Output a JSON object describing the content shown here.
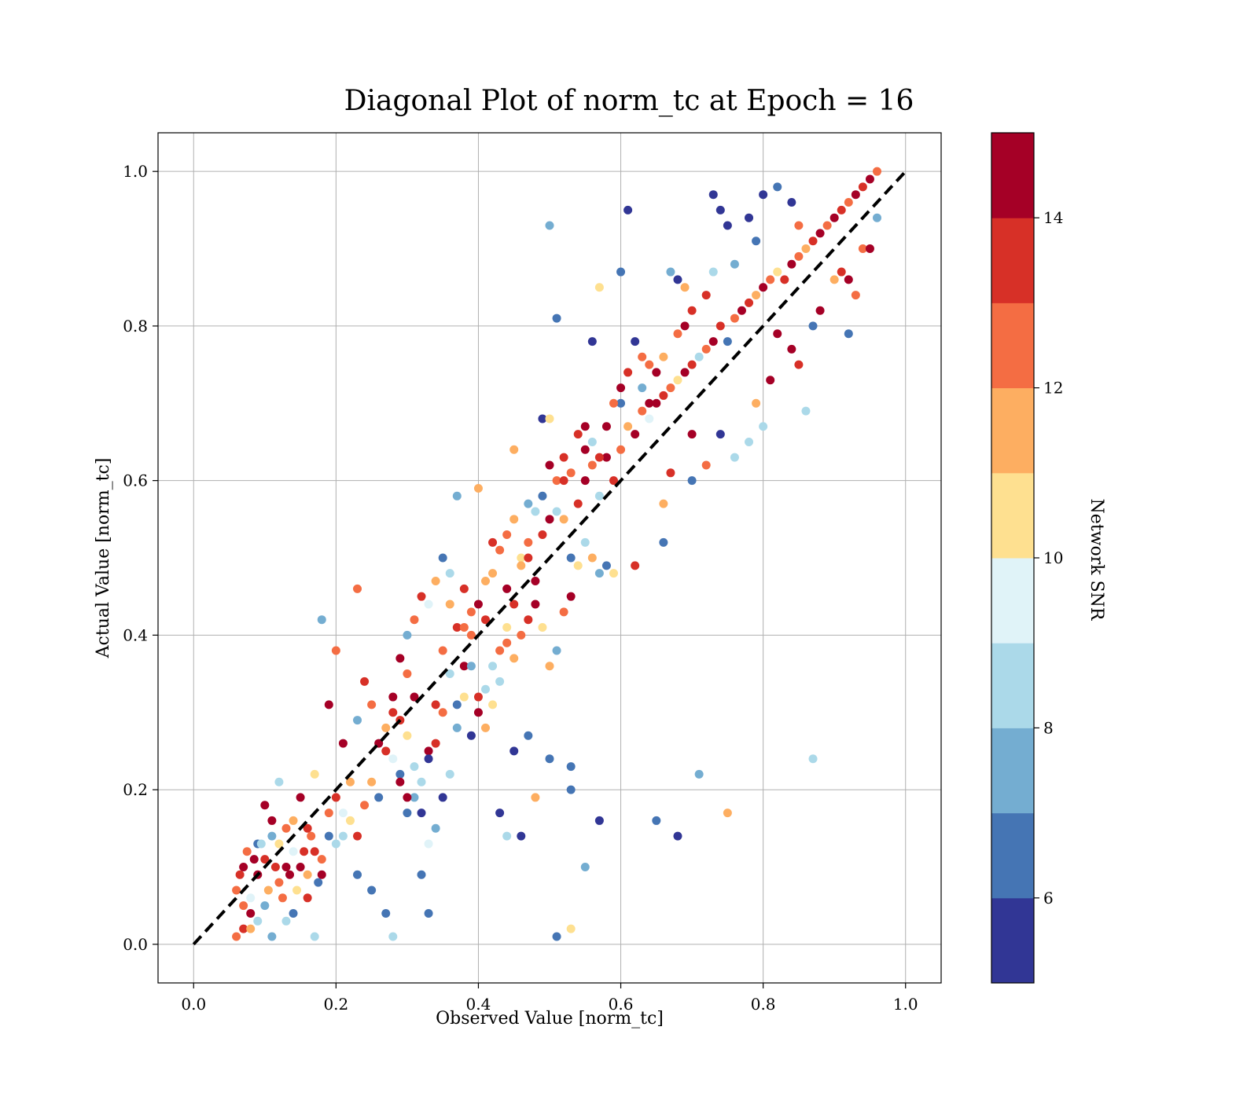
{
  "chart_data": {
    "type": "scatter",
    "title": "Diagonal Plot of norm_tc at Epoch = 16",
    "xlabel": "Observed Value [norm_tc]",
    "ylabel": "Actual Value [norm_tc]",
    "xlim": [
      -0.05,
      1.05
    ],
    "ylim": [
      -0.05,
      1.05
    ],
    "xticks": [
      "0.0",
      "0.2",
      "0.4",
      "0.6",
      "0.8",
      "1.0"
    ],
    "yticks": [
      "0.0",
      "0.2",
      "0.4",
      "0.6",
      "0.8",
      "1.0"
    ],
    "grid": true,
    "reference_line": {
      "style": "dashed",
      "color": "#000000",
      "from": [
        0,
        0
      ],
      "to": [
        1,
        1
      ]
    },
    "colorbar": {
      "label": "Network SNR",
      "range": [
        5,
        15
      ],
      "ticks": [
        "6",
        "8",
        "10",
        "12",
        "14"
      ],
      "colors": [
        "#313695",
        "#4575b4",
        "#74add1",
        "#abd9e9",
        "#e0f3f8",
        "#fee090",
        "#fdae61",
        "#f46d43",
        "#d73027",
        "#a50026"
      ]
    },
    "points": [
      [
        0.06,
        0.01,
        12
      ],
      [
        0.07,
        0.02,
        13
      ],
      [
        0.08,
        0.04,
        14
      ],
      [
        0.06,
        0.07,
        12
      ],
      [
        0.09,
        0.09,
        14
      ],
      [
        0.1,
        0.11,
        13
      ],
      [
        0.12,
        0.08,
        12
      ],
      [
        0.11,
        0.14,
        7
      ],
      [
        0.13,
        0.1,
        14
      ],
      [
        0.08,
        0.06,
        9
      ],
      [
        0.07,
        0.1,
        14
      ],
      [
        0.1,
        0.18,
        14
      ],
      [
        0.12,
        0.21,
        8
      ],
      [
        0.14,
        0.16,
        11
      ],
      [
        0.09,
        0.13,
        6
      ],
      [
        0.15,
        0.19,
        14
      ],
      [
        0.16,
        0.15,
        13
      ],
      [
        0.17,
        0.22,
        10
      ],
      [
        0.18,
        0.09,
        14
      ],
      [
        0.16,
        0.06,
        13
      ],
      [
        0.13,
        0.03,
        8
      ],
      [
        0.11,
        0.01,
        7
      ],
      [
        0.17,
        0.01,
        8
      ],
      [
        0.14,
        0.04,
        6
      ],
      [
        0.19,
        0.17,
        12
      ],
      [
        0.2,
        0.19,
        13
      ],
      [
        0.21,
        0.26,
        14
      ],
      [
        0.22,
        0.21,
        11
      ],
      [
        0.23,
        0.29,
        7
      ],
      [
        0.24,
        0.34,
        13
      ],
      [
        0.25,
        0.31,
        12
      ],
      [
        0.26,
        0.26,
        14
      ],
      [
        0.27,
        0.28,
        11
      ],
      [
        0.28,
        0.3,
        13
      ],
      [
        0.29,
        0.37,
        14
      ],
      [
        0.3,
        0.35,
        12
      ],
      [
        0.31,
        0.32,
        14
      ],
      [
        0.29,
        0.22,
        6
      ],
      [
        0.3,
        0.17,
        6
      ],
      [
        0.32,
        0.09,
        6
      ],
      [
        0.33,
        0.04,
        6
      ],
      [
        0.27,
        0.04,
        6
      ],
      [
        0.28,
        0.01,
        8
      ],
      [
        0.25,
        0.07,
        6
      ],
      [
        0.23,
        0.09,
        6
      ],
      [
        0.21,
        0.14,
        8
      ],
      [
        0.33,
        0.25,
        14
      ],
      [
        0.34,
        0.31,
        13
      ],
      [
        0.35,
        0.38,
        12
      ],
      [
        0.36,
        0.44,
        11
      ],
      [
        0.37,
        0.41,
        13
      ],
      [
        0.38,
        0.36,
        14
      ],
      [
        0.39,
        0.4,
        12
      ],
      [
        0.4,
        0.44,
        14
      ],
      [
        0.41,
        0.42,
        13
      ],
      [
        0.42,
        0.48,
        11
      ],
      [
        0.43,
        0.51,
        12
      ],
      [
        0.44,
        0.46,
        14
      ],
      [
        0.45,
        0.44,
        13
      ],
      [
        0.46,
        0.5,
        10
      ],
      [
        0.47,
        0.52,
        12
      ],
      [
        0.48,
        0.47,
        14
      ],
      [
        0.49,
        0.53,
        13
      ],
      [
        0.5,
        0.55,
        14
      ],
      [
        0.51,
        0.6,
        12
      ],
      [
        0.52,
        0.55,
        11
      ],
      [
        0.53,
        0.5,
        6
      ],
      [
        0.54,
        0.57,
        13
      ],
      [
        0.55,
        0.6,
        14
      ],
      [
        0.56,
        0.62,
        12
      ],
      [
        0.57,
        0.58,
        8
      ],
      [
        0.58,
        0.63,
        14
      ],
      [
        0.59,
        0.6,
        13
      ],
      [
        0.6,
        0.64,
        12
      ],
      [
        0.61,
        0.67,
        11
      ],
      [
        0.62,
        0.66,
        14
      ],
      [
        0.63,
        0.69,
        12
      ],
      [
        0.64,
        0.68,
        9
      ],
      [
        0.65,
        0.7,
        14
      ],
      [
        0.66,
        0.71,
        13
      ],
      [
        0.67,
        0.72,
        12
      ],
      [
        0.68,
        0.73,
        10
      ],
      [
        0.69,
        0.74,
        14
      ],
      [
        0.7,
        0.75,
        13
      ],
      [
        0.71,
        0.76,
        8
      ],
      [
        0.72,
        0.77,
        12
      ],
      [
        0.73,
        0.78,
        14
      ],
      [
        0.74,
        0.8,
        13
      ],
      [
        0.75,
        0.78,
        6
      ],
      [
        0.76,
        0.81,
        12
      ],
      [
        0.77,
        0.82,
        14
      ],
      [
        0.78,
        0.83,
        13
      ],
      [
        0.79,
        0.84,
        11
      ],
      [
        0.8,
        0.85,
        14
      ],
      [
        0.81,
        0.86,
        12
      ],
      [
        0.82,
        0.87,
        10
      ],
      [
        0.83,
        0.86,
        13
      ],
      [
        0.84,
        0.88,
        14
      ],
      [
        0.85,
        0.89,
        12
      ],
      [
        0.86,
        0.9,
        11
      ],
      [
        0.87,
        0.91,
        13
      ],
      [
        0.88,
        0.92,
        14
      ],
      [
        0.89,
        0.93,
        12
      ],
      [
        0.9,
        0.94,
        14
      ],
      [
        0.91,
        0.95,
        13
      ],
      [
        0.92,
        0.96,
        12
      ],
      [
        0.93,
        0.97,
        14
      ],
      [
        0.94,
        0.98,
        13
      ],
      [
        0.95,
        0.99,
        14
      ],
      [
        0.96,
        1.0,
        12
      ],
      [
        0.73,
        0.97,
        5
      ],
      [
        0.74,
        0.95,
        5
      ],
      [
        0.75,
        0.93,
        5
      ],
      [
        0.61,
        0.95,
        5
      ],
      [
        0.5,
        0.93,
        7
      ],
      [
        0.6,
        0.87,
        6
      ],
      [
        0.51,
        0.81,
        6
      ],
      [
        0.56,
        0.78,
        5
      ],
      [
        0.57,
        0.85,
        10
      ],
      [
        0.49,
        0.68,
        5
      ],
      [
        0.5,
        0.68,
        10
      ],
      [
        0.45,
        0.64,
        11
      ],
      [
        0.4,
        0.59,
        11
      ],
      [
        0.37,
        0.58,
        7
      ],
      [
        0.35,
        0.5,
        6
      ],
      [
        0.18,
        0.42,
        7
      ],
      [
        0.23,
        0.46,
        12
      ],
      [
        0.2,
        0.38,
        12
      ],
      [
        0.19,
        0.31,
        14
      ],
      [
        0.45,
        0.25,
        5
      ],
      [
        0.47,
        0.27,
        6
      ],
      [
        0.5,
        0.24,
        6
      ],
      [
        0.53,
        0.23,
        6
      ],
      [
        0.53,
        0.2,
        6
      ],
      [
        0.48,
        0.19,
        11
      ],
      [
        0.43,
        0.17,
        5
      ],
      [
        0.44,
        0.14,
        8
      ],
      [
        0.46,
        0.14,
        5
      ],
      [
        0.51,
        0.01,
        6
      ],
      [
        0.53,
        0.02,
        10
      ],
      [
        0.55,
        0.1,
        7
      ],
      [
        0.57,
        0.16,
        5
      ],
      [
        0.65,
        0.16,
        6
      ],
      [
        0.68,
        0.14,
        5
      ],
      [
        0.71,
        0.22,
        7
      ],
      [
        0.75,
        0.17,
        11
      ],
      [
        0.87,
        0.24,
        8
      ],
      [
        0.92,
        0.79,
        6
      ],
      [
        0.66,
        0.52,
        6
      ],
      [
        0.59,
        0.48,
        10
      ],
      [
        0.62,
        0.49,
        13
      ],
      [
        0.58,
        0.49,
        6
      ],
      [
        0.66,
        0.57,
        11
      ],
      [
        0.67,
        0.61,
        13
      ],
      [
        0.7,
        0.6,
        6
      ],
      [
        0.72,
        0.62,
        12
      ],
      [
        0.7,
        0.66,
        14
      ],
      [
        0.74,
        0.66,
        5
      ],
      [
        0.76,
        0.63,
        8
      ],
      [
        0.78,
        0.65,
        8
      ],
      [
        0.79,
        0.7,
        11
      ],
      [
        0.8,
        0.67,
        8
      ],
      [
        0.81,
        0.73,
        14
      ],
      [
        0.82,
        0.79,
        14
      ],
      [
        0.84,
        0.77,
        14
      ],
      [
        0.85,
        0.75,
        13
      ],
      [
        0.86,
        0.69,
        8
      ],
      [
        0.87,
        0.8,
        6
      ],
      [
        0.88,
        0.82,
        14
      ],
      [
        0.9,
        0.86,
        11
      ],
      [
        0.91,
        0.87,
        13
      ],
      [
        0.92,
        0.86,
        14
      ],
      [
        0.93,
        0.84,
        12
      ],
      [
        0.94,
        0.9,
        12
      ],
      [
        0.95,
        0.9,
        14
      ],
      [
        0.96,
        0.94,
        7
      ],
      [
        0.85,
        0.93,
        12
      ],
      [
        0.84,
        0.96,
        5
      ],
      [
        0.82,
        0.98,
        6
      ],
      [
        0.8,
        0.97,
        5
      ],
      [
        0.78,
        0.94,
        5
      ],
      [
        0.79,
        0.91,
        6
      ],
      [
        0.76,
        0.88,
        7
      ],
      [
        0.73,
        0.87,
        8
      ],
      [
        0.72,
        0.84,
        13
      ],
      [
        0.68,
        0.86,
        5
      ],
      [
        0.69,
        0.85,
        11
      ],
      [
        0.67,
        0.87,
        7
      ],
      [
        0.63,
        0.76,
        12
      ],
      [
        0.62,
        0.78,
        5
      ],
      [
        0.64,
        0.7,
        14
      ],
      [
        0.58,
        0.67,
        14
      ],
      [
        0.6,
        0.7,
        6
      ],
      [
        0.55,
        0.67,
        14
      ],
      [
        0.54,
        0.66,
        13
      ],
      [
        0.52,
        0.6,
        13
      ],
      [
        0.51,
        0.56,
        8
      ],
      [
        0.48,
        0.56,
        8
      ],
      [
        0.47,
        0.5,
        13
      ],
      [
        0.46,
        0.49,
        11
      ],
      [
        0.44,
        0.41,
        10
      ],
      [
        0.43,
        0.38,
        12
      ],
      [
        0.42,
        0.36,
        8
      ],
      [
        0.41,
        0.33,
        8
      ],
      [
        0.4,
        0.3,
        14
      ],
      [
        0.39,
        0.27,
        5
      ],
      [
        0.38,
        0.32,
        10
      ],
      [
        0.37,
        0.31,
        6
      ],
      [
        0.36,
        0.35,
        8
      ],
      [
        0.35,
        0.3,
        12
      ],
      [
        0.34,
        0.26,
        13
      ],
      [
        0.33,
        0.24,
        5
      ],
      [
        0.32,
        0.21,
        8
      ],
      [
        0.31,
        0.19,
        7
      ],
      [
        0.3,
        0.19,
        14
      ],
      [
        0.29,
        0.21,
        14
      ],
      [
        0.28,
        0.24,
        9
      ],
      [
        0.27,
        0.25,
        13
      ],
      [
        0.26,
        0.19,
        6
      ],
      [
        0.25,
        0.21,
        11
      ],
      [
        0.24,
        0.18,
        12
      ],
      [
        0.23,
        0.14,
        13
      ],
      [
        0.22,
        0.16,
        10
      ],
      [
        0.21,
        0.17,
        9
      ],
      [
        0.2,
        0.13,
        8
      ],
      [
        0.19,
        0.14,
        6
      ],
      [
        0.18,
        0.11,
        12
      ],
      [
        0.17,
        0.12,
        13
      ],
      [
        0.16,
        0.09,
        11
      ],
      [
        0.15,
        0.1,
        14
      ],
      [
        0.14,
        0.12,
        9
      ],
      [
        0.13,
        0.15,
        12
      ],
      [
        0.12,
        0.13,
        10
      ],
      [
        0.11,
        0.16,
        14
      ],
      [
        0.1,
        0.05,
        7
      ],
      [
        0.09,
        0.03,
        8
      ],
      [
        0.08,
        0.02,
        11
      ],
      [
        0.07,
        0.05,
        12
      ],
      [
        0.065,
        0.09,
        13
      ],
      [
        0.075,
        0.12,
        12
      ],
      [
        0.085,
        0.11,
        14
      ],
      [
        0.095,
        0.13,
        8
      ],
      [
        0.105,
        0.07,
        11
      ],
      [
        0.115,
        0.1,
        13
      ],
      [
        0.125,
        0.06,
        12
      ],
      [
        0.135,
        0.09,
        14
      ],
      [
        0.145,
        0.07,
        10
      ],
      [
        0.155,
        0.12,
        13
      ],
      [
        0.165,
        0.14,
        12
      ],
      [
        0.175,
        0.08,
        6
      ],
      [
        0.3,
        0.4,
        7
      ],
      [
        0.31,
        0.42,
        12
      ],
      [
        0.32,
        0.45,
        13
      ],
      [
        0.33,
        0.44,
        9
      ],
      [
        0.34,
        0.47,
        11
      ],
      [
        0.36,
        0.48,
        8
      ],
      [
        0.38,
        0.46,
        13
      ],
      [
        0.39,
        0.43,
        12
      ],
      [
        0.41,
        0.47,
        11
      ],
      [
        0.42,
        0.52,
        13
      ],
      [
        0.44,
        0.53,
        12
      ],
      [
        0.45,
        0.55,
        11
      ],
      [
        0.47,
        0.57,
        7
      ],
      [
        0.49,
        0.58,
        6
      ],
      [
        0.5,
        0.62,
        14
      ],
      [
        0.52,
        0.63,
        13
      ],
      [
        0.53,
        0.61,
        12
      ],
      [
        0.55,
        0.64,
        14
      ],
      [
        0.56,
        0.65,
        8
      ],
      [
        0.57,
        0.63,
        13
      ],
      [
        0.59,
        0.7,
        12
      ],
      [
        0.6,
        0.72,
        14
      ],
      [
        0.61,
        0.74,
        13
      ],
      [
        0.63,
        0.72,
        7
      ],
      [
        0.64,
        0.75,
        12
      ],
      [
        0.65,
        0.74,
        14
      ],
      [
        0.66,
        0.76,
        11
      ],
      [
        0.68,
        0.79,
        12
      ],
      [
        0.69,
        0.8,
        14
      ],
      [
        0.7,
        0.82,
        13
      ],
      [
        0.55,
        0.52,
        8
      ],
      [
        0.56,
        0.5,
        11
      ],
      [
        0.57,
        0.48,
        7
      ],
      [
        0.54,
        0.49,
        10
      ],
      [
        0.53,
        0.45,
        14
      ],
      [
        0.52,
        0.43,
        12
      ],
      [
        0.51,
        0.38,
        7
      ],
      [
        0.5,
        0.36,
        11
      ],
      [
        0.49,
        0.41,
        10
      ],
      [
        0.48,
        0.44,
        14
      ],
      [
        0.47,
        0.42,
        13
      ],
      [
        0.46,
        0.4,
        12
      ],
      [
        0.45,
        0.37,
        11
      ],
      [
        0.44,
        0.39,
        12
      ],
      [
        0.43,
        0.34,
        8
      ],
      [
        0.42,
        0.31,
        10
      ],
      [
        0.41,
        0.28,
        11
      ],
      [
        0.4,
        0.32,
        13
      ],
      [
        0.39,
        0.36,
        7
      ],
      [
        0.38,
        0.41,
        12
      ],
      [
        0.37,
        0.28,
        7
      ],
      [
        0.36,
        0.22,
        8
      ],
      [
        0.35,
        0.19,
        5
      ],
      [
        0.34,
        0.15,
        7
      ],
      [
        0.33,
        0.13,
        9
      ],
      [
        0.32,
        0.17,
        5
      ],
      [
        0.31,
        0.23,
        8
      ],
      [
        0.3,
        0.27,
        10
      ],
      [
        0.29,
        0.29,
        13
      ],
      [
        0.28,
        0.32,
        14
      ]
    ]
  }
}
